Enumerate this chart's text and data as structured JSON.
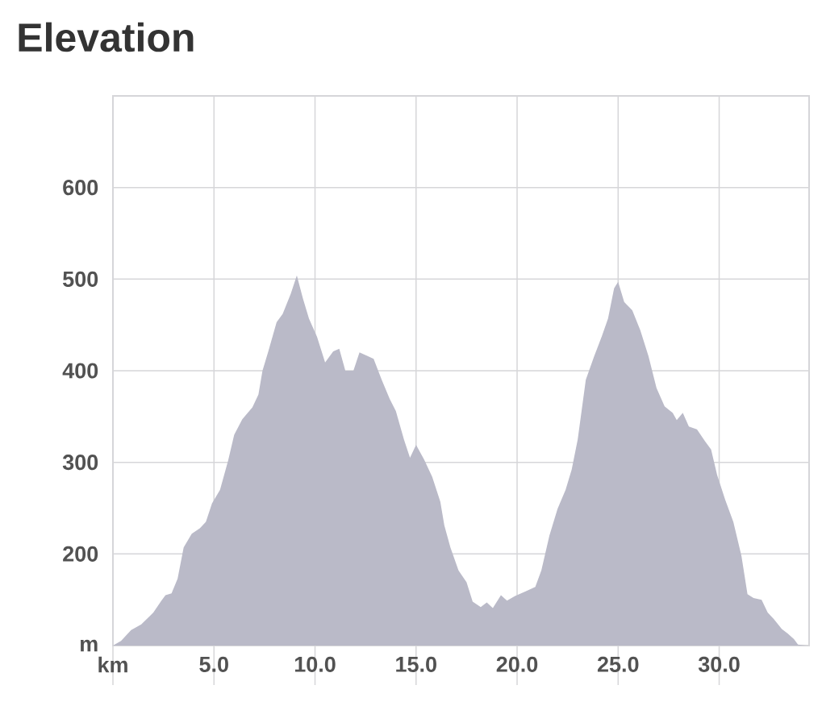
{
  "chart_data": {
    "type": "area",
    "title": "Elevation",
    "color": "#babac8",
    "grid": true,
    "xlim": [
      0,
      34.45
    ],
    "ylim": [
      100,
      700
    ],
    "xticks": [
      {
        "value": 0,
        "label": "km"
      },
      {
        "value": 5,
        "label": "5.0"
      },
      {
        "value": 10,
        "label": "10.0"
      },
      {
        "value": 15,
        "label": "15.0"
      },
      {
        "value": 20,
        "label": "20.0"
      },
      {
        "value": 25,
        "label": "25.0"
      },
      {
        "value": 30,
        "label": "30.0"
      }
    ],
    "yticks": [
      {
        "value": 100,
        "label": "m"
      },
      200,
      300,
      400,
      500,
      600
    ],
    "x": [
      0,
      0.4,
      0.9,
      1.4,
      2.0,
      2.4,
      2.6,
      2.9,
      3.2,
      3.5,
      3.9,
      4.3,
      4.6,
      4.9,
      5.3,
      5.7,
      6.0,
      6.4,
      6.9,
      7.2,
      7.4,
      7.7,
      8.1,
      8.4,
      8.8,
      9.1,
      9.4,
      9.7,
      10.1,
      10.5,
      10.9,
      11.2,
      11.5,
      11.9,
      12.2,
      12.6,
      12.9,
      13.3,
      13.7,
      14.0,
      14.4,
      14.7,
      15.0,
      15.4,
      15.8,
      16.2,
      16.4,
      16.7,
      17.1,
      17.5,
      17.8,
      18.2,
      18.5,
      18.8,
      19.2,
      19.5,
      19.9,
      20.4,
      20.9,
      21.2,
      21.6,
      22.0,
      22.4,
      22.7,
      23.0,
      23.4,
      23.8,
      24.2,
      24.5,
      24.8,
      25.0,
      25.3,
      25.7,
      26.1,
      26.5,
      26.9,
      27.3,
      27.7,
      27.9,
      28.2,
      28.5,
      28.9,
      29.3,
      29.6,
      29.9,
      30.3,
      30.7,
      31.1,
      31.4,
      31.7,
      32.1,
      32.4,
      32.7,
      33.1,
      33.4,
      33.7,
      33.9,
      34.3
    ],
    "values": [
      100,
      105,
      117,
      123,
      136,
      149,
      155,
      157,
      173,
      207,
      222,
      228,
      235,
      255,
      270,
      302,
      330,
      347,
      360,
      374,
      400,
      422,
      453,
      462,
      484,
      504,
      479,
      457,
      437,
      409,
      421,
      424,
      400,
      400,
      420,
      416,
      413,
      390,
      369,
      356,
      325,
      305,
      319,
      303,
      284,
      257,
      231,
      207,
      182,
      169,
      148,
      142,
      147,
      141,
      155,
      149,
      154,
      159,
      164,
      182,
      220,
      249,
      270,
      292,
      325,
      390,
      415,
      438,
      457,
      490,
      497,
      475,
      466,
      444,
      416,
      381,
      361,
      354,
      346,
      354,
      339,
      336,
      323,
      314,
      286,
      259,
      235,
      198,
      156,
      152,
      150,
      136,
      129,
      118,
      113,
      107,
      101,
      100
    ]
  }
}
